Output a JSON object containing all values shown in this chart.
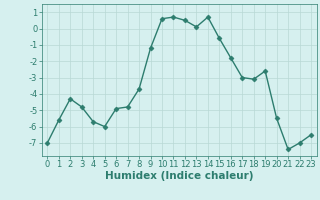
{
  "x": [
    0,
    1,
    2,
    3,
    4,
    5,
    6,
    7,
    8,
    9,
    10,
    11,
    12,
    13,
    14,
    15,
    16,
    17,
    18,
    19,
    20,
    21,
    22,
    23
  ],
  "y": [
    -7,
    -5.6,
    -4.3,
    -4.8,
    -5.7,
    -6.0,
    -4.9,
    -4.8,
    -3.7,
    -1.2,
    0.6,
    0.7,
    0.5,
    0.1,
    0.7,
    -0.6,
    -1.8,
    -3.0,
    -3.1,
    -2.6,
    -5.5,
    -7.4,
    -7.0,
    -6.5
  ],
  "line_color": "#2d7d6e",
  "marker": "D",
  "markersize": 2.5,
  "linewidth": 1.0,
  "background_color": "#d6f0ef",
  "grid_color": "#b8d8d5",
  "xlabel": "Humidex (Indice chaleur)",
  "ylim": [
    -7.8,
    1.5
  ],
  "xlim": [
    -0.5,
    23.5
  ],
  "yticks": [
    -7,
    -6,
    -5,
    -4,
    -3,
    -2,
    -1,
    0,
    1
  ],
  "xticks": [
    0,
    1,
    2,
    3,
    4,
    5,
    6,
    7,
    8,
    9,
    10,
    11,
    12,
    13,
    14,
    15,
    16,
    17,
    18,
    19,
    20,
    21,
    22,
    23
  ],
  "tick_color": "#2d7d6e",
  "label_color": "#2d7d6e",
  "xlabel_fontsize": 7.5,
  "tick_fontsize": 6.0
}
